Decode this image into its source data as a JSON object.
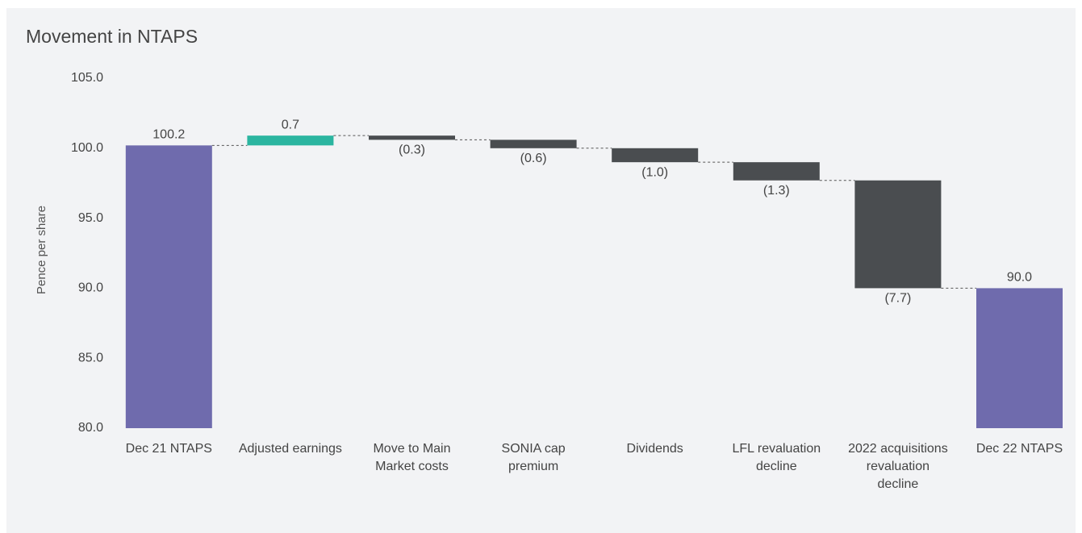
{
  "chart_data": {
    "type": "waterfall",
    "title": "Movement in NTAPS",
    "y_label": "Pence per share",
    "categories": [
      "Dec 21 NTAPS",
      "Adjusted earnings",
      "Move to Main Market costs",
      "SONIA cap premium",
      "Dividends",
      "LFL revaluation decline",
      "2022 acquisitions revaluation decline",
      "Dec 22 NTAPS"
    ],
    "values": [
      100.2,
      0.7,
      -0.3,
      -0.6,
      -1.0,
      -1.3,
      -7.7,
      90.0
    ],
    "value_labels": [
      "100.2",
      "0.7",
      "(0.3)",
      "(0.6)",
      "(1.0)",
      "(1.3)",
      "(7.7)",
      "90.0"
    ],
    "measure": [
      "total",
      "relative",
      "relative",
      "relative",
      "relative",
      "relative",
      "relative",
      "total"
    ],
    "colors": {
      "total": "#6f6bad",
      "increase": "#2bb5a0",
      "decrease": "#4a4d50"
    },
    "ylim": [
      80,
      105
    ],
    "yticks": [
      {
        "value": 80,
        "label": "80.0"
      },
      {
        "value": 85,
        "label": "85.0"
      },
      {
        "value": 90,
        "label": "90.0"
      },
      {
        "value": 95,
        "label": "95.0"
      },
      {
        "value": 100,
        "label": "100.0"
      },
      {
        "value": 105,
        "label": "105.0"
      }
    ]
  }
}
